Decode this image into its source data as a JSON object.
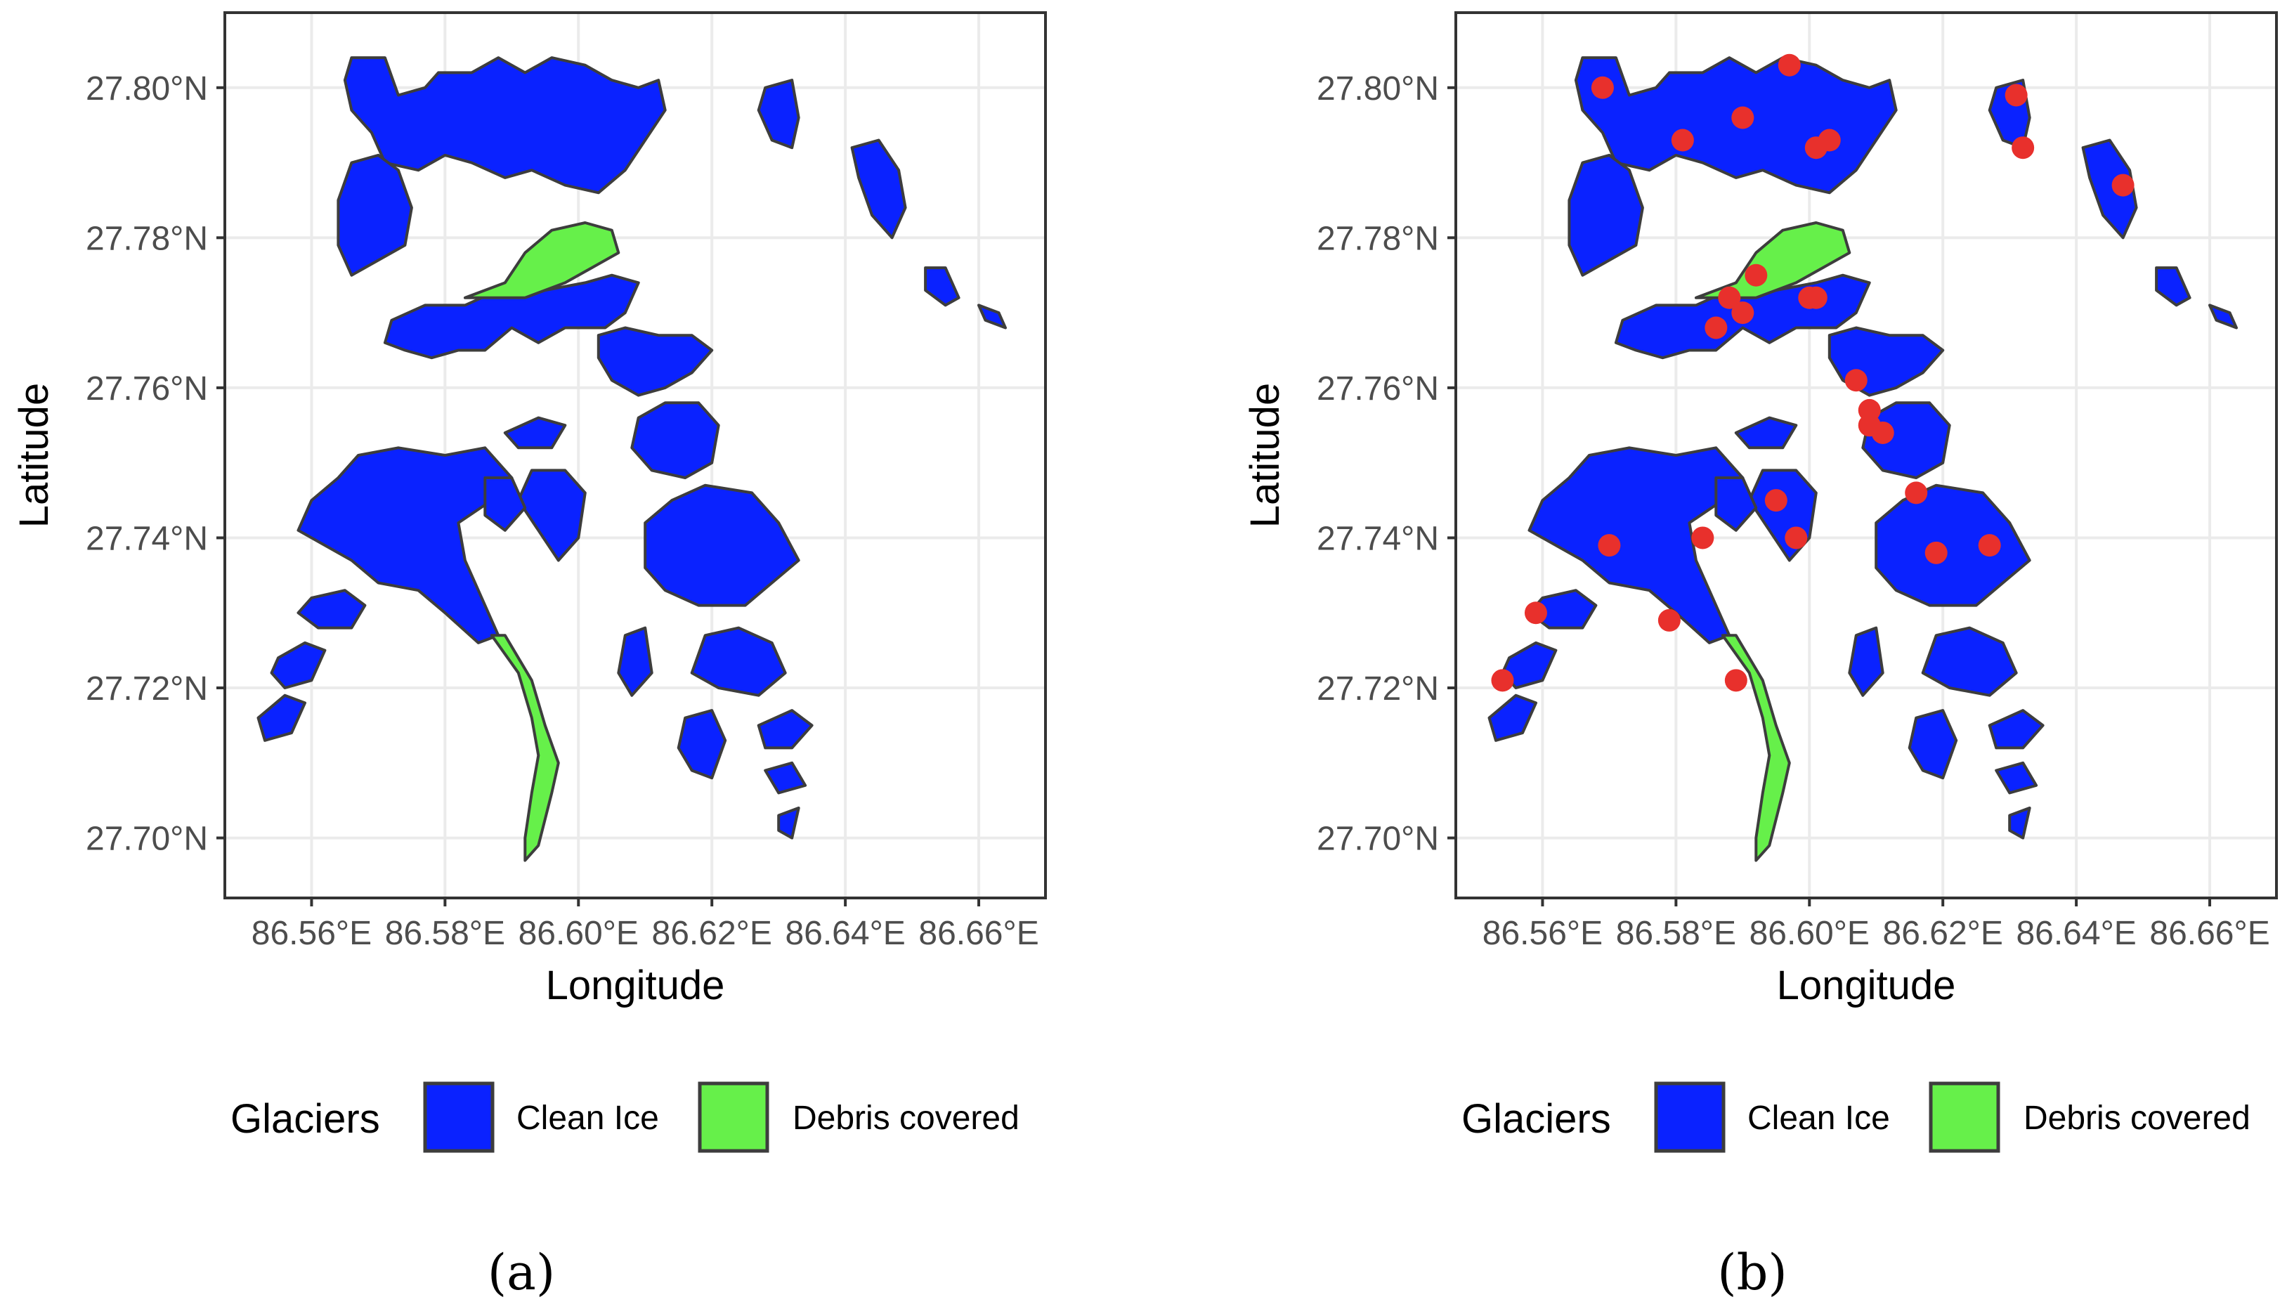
{
  "panels": [
    {
      "caption": "(a)",
      "show_points": false
    },
    {
      "caption": "(b)",
      "show_points": true
    }
  ],
  "map": {
    "x_axis_title": "Longitude",
    "y_axis_title": "Latitude",
    "x_ticks": [
      "86.56°E",
      "86.58°E",
      "86.60°E",
      "86.62°E",
      "86.64°E",
      "86.66°E"
    ],
    "x_tick_values": [
      86.56,
      86.58,
      86.6,
      86.62,
      86.64,
      86.66
    ],
    "y_ticks": [
      "27.80°N",
      "27.78°N",
      "27.76°N",
      "27.74°N",
      "27.72°N",
      "27.70°N"
    ],
    "y_tick_values": [
      27.8,
      27.78,
      27.76,
      27.74,
      27.72,
      27.7
    ],
    "x_range": [
      86.547,
      86.67
    ],
    "y_range": [
      27.692,
      27.81
    ],
    "grid": true
  },
  "legend": {
    "title": "Glaciers",
    "position": "bottom",
    "items": [
      {
        "label": "Clean Ice",
        "color": "#0a22ff"
      },
      {
        "label": "Debris covered",
        "color": "#66f04a"
      }
    ]
  },
  "colors": {
    "clean_ice": "#0a22ff",
    "debris": "#66f04a",
    "outline": "#3d3d3d",
    "points": "#e8302c",
    "grid": "#ebebeb",
    "frame": "#333333"
  },
  "glaciers": {
    "clean_ice": [
      [
        [
          86.566,
          27.804
        ],
        [
          86.571,
          27.804
        ],
        [
          86.573,
          27.799
        ],
        [
          86.577,
          27.8
        ],
        [
          86.579,
          27.802
        ],
        [
          86.584,
          27.802
        ],
        [
          86.588,
          27.804
        ],
        [
          86.592,
          27.802
        ],
        [
          86.596,
          27.804
        ],
        [
          86.601,
          27.803
        ],
        [
          86.605,
          27.801
        ],
        [
          86.609,
          27.8
        ],
        [
          86.612,
          27.801
        ],
        [
          86.613,
          27.797
        ],
        [
          86.61,
          27.793
        ],
        [
          86.607,
          27.789
        ],
        [
          86.603,
          27.786
        ],
        [
          86.598,
          27.787
        ],
        [
          86.593,
          27.789
        ],
        [
          86.589,
          27.788
        ],
        [
          86.584,
          27.79
        ],
        [
          86.58,
          27.791
        ],
        [
          86.576,
          27.789
        ],
        [
          86.571,
          27.79
        ],
        [
          86.569,
          27.794
        ],
        [
          86.566,
          27.797
        ],
        [
          86.565,
          27.801
        ]
      ],
      [
        [
          86.566,
          27.79
        ],
        [
          86.57,
          27.791
        ],
        [
          86.573,
          27.789
        ],
        [
          86.575,
          27.784
        ],
        [
          86.574,
          27.779
        ],
        [
          86.57,
          27.777
        ],
        [
          86.566,
          27.775
        ],
        [
          86.564,
          27.779
        ],
        [
          86.564,
          27.785
        ]
      ],
      [
        [
          86.583,
          27.771
        ],
        [
          86.588,
          27.773
        ],
        [
          86.595,
          27.773
        ],
        [
          86.601,
          27.774
        ],
        [
          86.605,
          27.775
        ],
        [
          86.609,
          27.774
        ],
        [
          86.607,
          27.77
        ],
        [
          86.604,
          27.768
        ],
        [
          86.598,
          27.768
        ],
        [
          86.594,
          27.766
        ],
        [
          86.59,
          27.768
        ],
        [
          86.586,
          27.765
        ],
        [
          86.582,
          27.765
        ],
        [
          86.578,
          27.764
        ],
        [
          86.574,
          27.765
        ],
        [
          86.571,
          27.766
        ],
        [
          86.572,
          27.769
        ],
        [
          86.577,
          27.771
        ]
      ],
      [
        [
          86.603,
          27.767
        ],
        [
          86.607,
          27.768
        ],
        [
          86.612,
          27.767
        ],
        [
          86.617,
          27.767
        ],
        [
          86.62,
          27.765
        ],
        [
          86.617,
          27.762
        ],
        [
          86.613,
          27.76
        ],
        [
          86.609,
          27.759
        ],
        [
          86.605,
          27.761
        ],
        [
          86.603,
          27.764
        ]
      ],
      [
        [
          86.609,
          27.756
        ],
        [
          86.613,
          27.758
        ],
        [
          86.618,
          27.758
        ],
        [
          86.621,
          27.755
        ],
        [
          86.62,
          27.75
        ],
        [
          86.616,
          27.748
        ],
        [
          86.611,
          27.749
        ],
        [
          86.608,
          27.752
        ]
      ],
      [
        [
          86.61,
          27.742
        ],
        [
          86.614,
          27.745
        ],
        [
          86.619,
          27.747
        ],
        [
          86.626,
          27.746
        ],
        [
          86.63,
          27.742
        ],
        [
          86.633,
          27.737
        ],
        [
          86.629,
          27.734
        ],
        [
          86.625,
          27.731
        ],
        [
          86.618,
          27.731
        ],
        [
          86.613,
          27.733
        ],
        [
          86.61,
          27.736
        ]
      ],
      [
        [
          86.567,
          27.751
        ],
        [
          86.573,
          27.752
        ],
        [
          86.58,
          27.751
        ],
        [
          86.586,
          27.752
        ],
        [
          86.59,
          27.748
        ],
        [
          86.587,
          27.745
        ],
        [
          86.582,
          27.742
        ],
        [
          86.583,
          27.737
        ],
        [
          86.586,
          27.731
        ],
        [
          86.588,
          27.727
        ],
        [
          86.585,
          27.726
        ],
        [
          86.58,
          27.73
        ],
        [
          86.576,
          27.733
        ],
        [
          86.57,
          27.734
        ],
        [
          86.566,
          27.737
        ],
        [
          86.562,
          27.739
        ],
        [
          86.558,
          27.741
        ],
        [
          86.56,
          27.745
        ],
        [
          86.564,
          27.748
        ]
      ],
      [
        [
          86.593,
          27.749
        ],
        [
          86.598,
          27.749
        ],
        [
          86.601,
          27.746
        ],
        [
          86.6,
          27.74
        ],
        [
          86.597,
          27.737
        ],
        [
          86.594,
          27.741
        ],
        [
          86.591,
          27.745
        ]
      ],
      [
        [
          86.586,
          27.748
        ],
        [
          86.59,
          27.748
        ],
        [
          86.592,
          27.744
        ],
        [
          86.589,
          27.741
        ],
        [
          86.586,
          27.743
        ]
      ],
      [
        [
          86.589,
          27.754
        ],
        [
          86.594,
          27.756
        ],
        [
          86.598,
          27.755
        ],
        [
          86.596,
          27.752
        ],
        [
          86.591,
          27.752
        ]
      ],
      [
        [
          86.56,
          27.732
        ],
        [
          86.565,
          27.733
        ],
        [
          86.568,
          27.731
        ],
        [
          86.566,
          27.728
        ],
        [
          86.561,
          27.728
        ],
        [
          86.558,
          27.73
        ]
      ],
      [
        [
          86.555,
          27.724
        ],
        [
          86.559,
          27.726
        ],
        [
          86.562,
          27.725
        ],
        [
          86.56,
          27.721
        ],
        [
          86.556,
          27.72
        ],
        [
          86.554,
          27.722
        ]
      ],
      [
        [
          86.552,
          27.716
        ],
        [
          86.556,
          27.719
        ],
        [
          86.559,
          27.718
        ],
        [
          86.557,
          27.714
        ],
        [
          86.553,
          27.713
        ]
      ],
      [
        [
          86.619,
          27.727
        ],
        [
          86.624,
          27.728
        ],
        [
          86.629,
          27.726
        ],
        [
          86.631,
          27.722
        ],
        [
          86.627,
          27.719
        ],
        [
          86.621,
          27.72
        ],
        [
          86.617,
          27.722
        ]
      ],
      [
        [
          86.616,
          27.716
        ],
        [
          86.62,
          27.717
        ],
        [
          86.622,
          27.713
        ],
        [
          86.62,
          27.708
        ],
        [
          86.617,
          27.709
        ],
        [
          86.615,
          27.712
        ]
      ],
      [
        [
          86.627,
          27.715
        ],
        [
          86.632,
          27.717
        ],
        [
          86.635,
          27.715
        ],
        [
          86.632,
          27.712
        ],
        [
          86.628,
          27.712
        ]
      ],
      [
        [
          86.628,
          27.709
        ],
        [
          86.632,
          27.71
        ],
        [
          86.634,
          27.707
        ],
        [
          86.63,
          27.706
        ]
      ],
      [
        [
          86.607,
          27.727
        ],
        [
          86.61,
          27.728
        ],
        [
          86.611,
          27.722
        ],
        [
          86.608,
          27.719
        ],
        [
          86.606,
          27.722
        ]
      ],
      [
        [
          86.63,
          27.703
        ],
        [
          86.633,
          27.704
        ],
        [
          86.632,
          27.7
        ],
        [
          86.63,
          27.701
        ]
      ],
      [
        [
          86.628,
          27.8
        ],
        [
          86.632,
          27.801
        ],
        [
          86.633,
          27.796
        ],
        [
          86.632,
          27.792
        ],
        [
          86.629,
          27.793
        ],
        [
          86.627,
          27.797
        ]
      ],
      [
        [
          86.641,
          27.792
        ],
        [
          86.645,
          27.793
        ],
        [
          86.648,
          27.789
        ],
        [
          86.649,
          27.784
        ],
        [
          86.647,
          27.78
        ],
        [
          86.644,
          27.783
        ],
        [
          86.642,
          27.788
        ]
      ],
      [
        [
          86.652,
          27.776
        ],
        [
          86.655,
          27.776
        ],
        [
          86.657,
          27.772
        ],
        [
          86.655,
          27.771
        ],
        [
          86.652,
          27.773
        ]
      ],
      [
        [
          86.66,
          27.771
        ],
        [
          86.663,
          27.77
        ],
        [
          86.664,
          27.768
        ],
        [
          86.661,
          27.769
        ]
      ]
    ],
    "debris": [
      [
        [
          86.583,
          27.772
        ],
        [
          86.589,
          27.774
        ],
        [
          86.592,
          27.778
        ],
        [
          86.596,
          27.781
        ],
        [
          86.601,
          27.782
        ],
        [
          86.605,
          27.781
        ],
        [
          86.606,
          27.778
        ],
        [
          86.602,
          27.776
        ],
        [
          86.598,
          27.774
        ],
        [
          86.592,
          27.772
        ]
      ],
      [
        [
          86.587,
          27.727
        ],
        [
          86.591,
          27.722
        ],
        [
          86.593,
          27.716
        ],
        [
          86.594,
          27.711
        ],
        [
          86.593,
          27.706
        ],
        [
          86.592,
          27.7
        ],
        [
          86.592,
          27.697
        ],
        [
          86.594,
          27.699
        ],
        [
          86.596,
          27.706
        ],
        [
          86.597,
          27.71
        ],
        [
          86.595,
          27.715
        ],
        [
          86.593,
          27.721
        ],
        [
          86.589,
          27.727
        ]
      ]
    ]
  },
  "sample_points": [
    [
      86.569,
      27.8
    ],
    [
      86.581,
      27.793
    ],
    [
      86.59,
      27.796
    ],
    [
      86.597,
      27.803
    ],
    [
      86.601,
      27.792
    ],
    [
      86.603,
      27.793
    ],
    [
      86.631,
      27.799
    ],
    [
      86.632,
      27.792
    ],
    [
      86.647,
      27.787
    ],
    [
      86.592,
      27.775
    ],
    [
      86.588,
      27.772
    ],
    [
      86.59,
      27.77
    ],
    [
      86.586,
      27.768
    ],
    [
      86.6,
      27.772
    ],
    [
      86.601,
      27.772
    ],
    [
      86.607,
      27.761
    ],
    [
      86.609,
      27.757
    ],
    [
      86.609,
      27.755
    ],
    [
      86.611,
      27.754
    ],
    [
      86.616,
      27.746
    ],
    [
      86.595,
      27.745
    ],
    [
      86.598,
      27.74
    ],
    [
      86.584,
      27.74
    ],
    [
      86.57,
      27.739
    ],
    [
      86.619,
      27.738
    ],
    [
      86.627,
      27.739
    ],
    [
      86.559,
      27.73
    ],
    [
      86.579,
      27.729
    ],
    [
      86.589,
      27.721
    ],
    [
      86.554,
      27.721
    ]
  ]
}
